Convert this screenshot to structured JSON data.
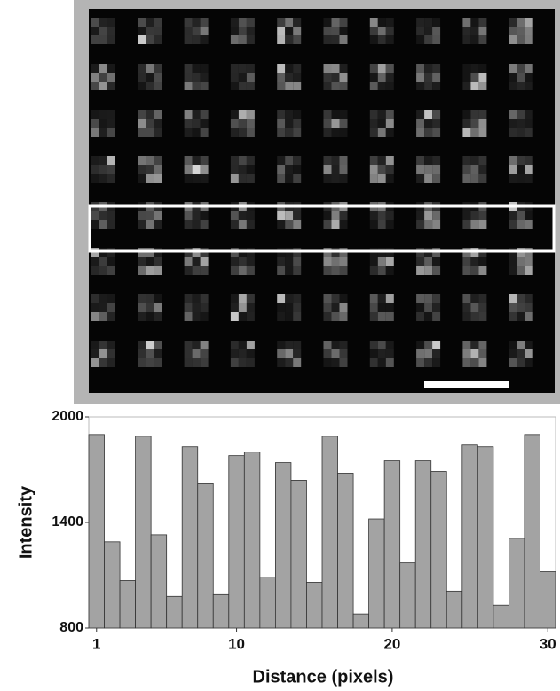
{
  "chart_data": {
    "type": "bar",
    "xlabel": "Distance (pixels)",
    "ylabel": "Intensity",
    "x": [
      1,
      2,
      3,
      4,
      5,
      6,
      7,
      8,
      9,
      10,
      11,
      12,
      13,
      14,
      15,
      16,
      17,
      18,
      19,
      20,
      21,
      22,
      23,
      24,
      25,
      26,
      27,
      28,
      29,
      30
    ],
    "values": [
      1900,
      1290,
      1070,
      1890,
      1330,
      980,
      1830,
      1620,
      990,
      1780,
      1800,
      1090,
      1740,
      1640,
      1060,
      1890,
      1680,
      880,
      1420,
      1750,
      1170,
      1750,
      1690,
      1010,
      1840,
      1830,
      930,
      1310,
      1900,
      1120
    ],
    "color": "#a3a3a3",
    "xlim": [
      0.5,
      30.5
    ],
    "xticks": [
      1,
      10,
      20,
      30
    ],
    "ylim": [
      800,
      2000
    ],
    "yticks": [
      800,
      1400,
      2000
    ]
  }
}
